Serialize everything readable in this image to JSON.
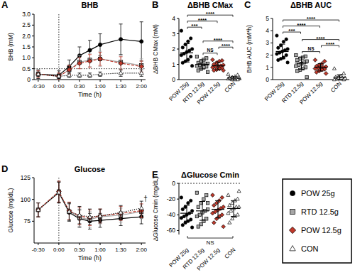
{
  "chart_data": [
    {
      "type": "line",
      "panel": "A",
      "title": "BHB",
      "x_label": "Time (h)",
      "y_label": "BHB (mM)",
      "x": [
        -0.5,
        0,
        0.25,
        0.5,
        0.75,
        1,
        1.5,
        2
      ],
      "xlim": [
        -0.6,
        2.1
      ],
      "xticks": [
        {
          "value": -0.5,
          "label": "-0:30"
        },
        {
          "value": 0,
          "label": "0:00"
        },
        {
          "value": 0.5,
          "label": "0:30"
        },
        {
          "value": 1,
          "label": "1:00"
        },
        {
          "value": 1.5,
          "label": "1:30"
        },
        {
          "value": 2,
          "label": "2:00"
        }
      ],
      "ylim": [
        0,
        3
      ],
      "yticks": [
        0,
        0.5,
        {
          "value": 1,
          "label": "1.0"
        },
        1.5,
        {
          "value": 2,
          "label": "2.0"
        },
        2.5,
        {
          "value": 3,
          "label": "3.0"
        }
      ],
      "reference_lines": {
        "x": [
          0
        ],
        "y": [
          0.5
        ]
      },
      "legend": "right",
      "series": [
        {
          "name": "POW 25g",
          "color": "#000000",
          "marker": "circle",
          "line_style": "solid",
          "values": [
            0.25,
            0.2,
            0.6,
            1.1,
            1.35,
            1.6,
            1.85,
            1.75
          ],
          "errors": [
            0.2,
            0.2,
            0.3,
            0.4,
            0.45,
            0.5,
            0.7,
            0.9
          ]
        },
        {
          "name": "RTD 12.5g",
          "color": "#a6a6a6",
          "marker": "square",
          "line_style": "solid",
          "values": [
            0.25,
            0.15,
            0.45,
            0.8,
            0.9,
            0.95,
            0.8,
            0.65
          ],
          "errors": [
            0.15,
            0.15,
            0.2,
            0.3,
            0.3,
            0.35,
            0.3,
            0.3
          ]
        },
        {
          "name": "POW 12.5g",
          "color": "#c0392b",
          "marker": "diamond",
          "line_style": "dashed",
          "values": [
            0.25,
            0.15,
            0.45,
            0.75,
            0.85,
            0.95,
            0.75,
            0.6
          ],
          "errors": [
            0.15,
            0.15,
            0.2,
            0.25,
            0.3,
            0.3,
            0.3,
            0.25
          ]
        },
        {
          "name": "CON",
          "color": "#ffffff",
          "marker": "triangle",
          "line_style": "dotted",
          "values": [
            0.25,
            0.15,
            0.2,
            0.2,
            0.2,
            0.25,
            0.3,
            0.3
          ],
          "errors": [
            0.1,
            0.1,
            0.1,
            0.1,
            0.1,
            0.1,
            0.15,
            0.15
          ]
        }
      ]
    },
    {
      "type": "dot",
      "panel": "B",
      "title": "ΔBHB CMax",
      "y_label": "ΔBHB CMax (mM)",
      "ylim": [
        0,
        4
      ],
      "yticks": [
        0,
        1,
        2,
        3,
        4
      ],
      "series": [
        {
          "name": "POW 25g",
          "color": "#000000",
          "marker": "circle",
          "values": [
            3.2,
            2.7,
            2.5,
            2.3,
            2.1,
            2.0,
            1.9,
            1.8,
            1.7,
            1.6,
            1.5,
            1.3,
            1.2,
            1.1,
            0.9
          ],
          "mean": 1.75,
          "sd": 0.6
        },
        {
          "name": "RTD 12.5g",
          "color": "#a6a6a6",
          "marker": "square",
          "values": [
            1.5,
            1.4,
            1.3,
            1.2,
            1.1,
            1.05,
            1.0,
            1.0,
            0.95,
            0.9,
            0.85,
            0.8,
            0.7,
            0.6,
            0.5
          ],
          "mean": 1.0,
          "sd": 0.3
        },
        {
          "name": "POW 12.5g",
          "color": "#c0392b",
          "marker": "diamond",
          "values": [
            1.3,
            1.25,
            1.2,
            1.1,
            1.0,
            0.95,
            0.9,
            0.9,
            0.85,
            0.8,
            0.75,
            0.7,
            0.65,
            0.6,
            0.6
          ],
          "mean": 0.9,
          "sd": 0.25
        },
        {
          "name": "CON",
          "color": "#ffffff",
          "marker": "triangle",
          "values": [
            0.35,
            0.3,
            0.2,
            0.15,
            0.1,
            0.1,
            0.1,
            0.05,
            0.05,
            0.05,
            0.0,
            0.0,
            0.0,
            0.1,
            0.15
          ],
          "mean": 0.1,
          "sd": 0.1
        }
      ],
      "comparisons": [
        {
          "from": 1,
          "to": 2,
          "label": "NS"
        },
        {
          "from": 2,
          "to": 3,
          "label": "****"
        },
        {
          "from": 1,
          "to": 3,
          "label": "****"
        },
        {
          "from": 0,
          "to": 1,
          "label": "***"
        },
        {
          "from": 0,
          "to": 2,
          "label": "****"
        },
        {
          "from": 0,
          "to": 3,
          "label": "****"
        }
      ]
    },
    {
      "type": "dot",
      "panel": "C",
      "title": "ΔBHB AUC",
      "y_label": "BHB AUC (mM*h)",
      "ylim": [
        0,
        5
      ],
      "yticks": [
        0,
        1,
        2,
        3,
        4,
        5
      ],
      "series": [
        {
          "name": "POW 25g",
          "color": "#000000",
          "marker": "circle",
          "values": [
            3.6,
            3.3,
            3.1,
            2.8,
            2.6,
            2.5,
            2.4,
            2.3,
            2.2,
            2.1,
            2.0,
            1.8,
            1.7,
            1.6,
            1.4
          ],
          "mean": 2.3,
          "sd": 0.6
        },
        {
          "name": "RTD 12.5g",
          "color": "#a6a6a6",
          "marker": "square",
          "values": [
            2.0,
            1.9,
            1.8,
            1.7,
            1.6,
            1.5,
            1.4,
            1.3,
            1.2,
            1.1,
            1.0,
            0.9,
            0.8,
            0.7,
            0.2
          ],
          "mean": 1.35,
          "sd": 0.5
        },
        {
          "name": "POW 12.5g",
          "color": "#c0392b",
          "marker": "diamond",
          "values": [
            1.6,
            1.5,
            1.3,
            1.2,
            1.1,
            1.05,
            1.0,
            1.0,
            0.95,
            0.9,
            0.85,
            0.8,
            0.7,
            0.6,
            0.5
          ],
          "mean": 1.0,
          "sd": 0.3
        },
        {
          "name": "CON",
          "color": "#ffffff",
          "marker": "triangle",
          "values": [
            0.9,
            0.5,
            0.3,
            0.2,
            0.15,
            0.1,
            0.1,
            0.05,
            0.05,
            0.0,
            0.0,
            0.1,
            0.15,
            0.2,
            0.1
          ],
          "mean": 0.2,
          "sd": 0.2
        }
      ],
      "comparisons": [
        {
          "from": 1,
          "to": 2,
          "label": "NS"
        },
        {
          "from": 2,
          "to": 3,
          "label": "****"
        },
        {
          "from": 1,
          "to": 3,
          "label": "****"
        },
        {
          "from": 0,
          "to": 1,
          "label": "***"
        },
        {
          "from": 0,
          "to": 2,
          "label": "****"
        },
        {
          "from": 0,
          "to": 3,
          "label": "****"
        }
      ]
    },
    {
      "type": "line",
      "panel": "D",
      "title": "Glucose",
      "x_label": "Time (h)",
      "y_label": "Glucose (mg/dL)",
      "x": [
        -0.5,
        0,
        0.25,
        0.5,
        0.75,
        1,
        1.5,
        2
      ],
      "xlim": [
        -0.6,
        2.1
      ],
      "xticks": [
        {
          "value": -0.5,
          "label": "-0:30"
        },
        {
          "value": 0,
          "label": "0:00"
        },
        {
          "value": 0.5,
          "label": "0:30"
        },
        {
          "value": 1,
          "label": "1:00"
        },
        {
          "value": 1.5,
          "label": "1:30"
        },
        {
          "value": 2,
          "label": "2:00"
        }
      ],
      "ylim": [
        50,
        125
      ],
      "yticks": [
        75,
        100,
        125
      ],
      "reference_lines": {
        "x": [
          0
        ]
      },
      "annotations": [
        {
          "text": "†",
          "x": 2,
          "y": 98
        }
      ],
      "series": [
        {
          "name": "POW 25g",
          "color": "#000000",
          "marker": "circle",
          "line_style": "solid",
          "values": [
            88,
            108,
            85,
            78,
            75,
            76,
            78,
            80
          ],
          "errors": [
            8,
            12,
            10,
            10,
            9,
            8,
            8,
            8
          ]
        },
        {
          "name": "RTD 12.5g",
          "color": "#a6a6a6",
          "marker": "square",
          "line_style": "solid",
          "values": [
            88,
            109,
            86,
            79,
            77,
            80,
            82,
            86
          ],
          "errors": [
            8,
            12,
            10,
            10,
            9,
            8,
            8,
            8
          ]
        },
        {
          "name": "POW 12.5g",
          "color": "#c0392b",
          "marker": "diamond",
          "line_style": "dashed",
          "values": [
            88,
            109,
            87,
            81,
            79,
            81,
            84,
            87
          ],
          "errors": [
            8,
            12,
            10,
            10,
            9,
            8,
            8,
            8
          ]
        },
        {
          "name": "CON",
          "color": "#ffffff",
          "marker": "triangle",
          "line_style": "dotted",
          "values": [
            88,
            108,
            86,
            82,
            80,
            81,
            85,
            90
          ],
          "errors": [
            8,
            12,
            10,
            10,
            9,
            8,
            8,
            8
          ]
        }
      ]
    },
    {
      "type": "dot",
      "panel": "E",
      "title": "ΔGlucose Cmin",
      "y_label": "ΔGlucose Cmin (mg/dL)",
      "ylim": [
        -65,
        0
      ],
      "yticks": [
        -60,
        -40,
        -20,
        0
      ],
      "reference_lines": {
        "y": [
          0
        ]
      },
      "series": [
        {
          "name": "POW 25g",
          "color": "#000000",
          "marker": "circle",
          "values": [
            -18,
            -22,
            -25,
            -30,
            -33,
            -35,
            -38,
            -40,
            -42,
            -44,
            -46,
            -48,
            -50,
            -53,
            -56
          ],
          "mean": -38,
          "sd": 10
        },
        {
          "name": "RTD 12.5g",
          "color": "#a6a6a6",
          "marker": "square",
          "values": [
            -12,
            -15,
            -20,
            -25,
            -30,
            -33,
            -35,
            -37,
            -40,
            -42,
            -45,
            -48,
            -52,
            -55,
            -25
          ],
          "mean": -35,
          "sd": 12
        },
        {
          "name": "POW 12.5g",
          "color": "#c0392b",
          "marker": "diamond",
          "values": [
            -15,
            -18,
            -22,
            -25,
            -28,
            -30,
            -32,
            -34,
            -36,
            -38,
            -40,
            -42,
            -45,
            -50,
            -55
          ],
          "mean": -33,
          "sd": 11
        },
        {
          "name": "CON",
          "color": "#ffffff",
          "marker": "triangle",
          "values": [
            -15,
            -20,
            -22,
            -25,
            -28,
            -30,
            -30,
            -32,
            -35,
            -38,
            -40,
            -42,
            -45,
            -50,
            -10
          ],
          "mean": -32,
          "sd": 10
        }
      ],
      "comparisons": [
        {
          "from": 0,
          "to": 3,
          "label": "NS"
        }
      ]
    }
  ]
}
